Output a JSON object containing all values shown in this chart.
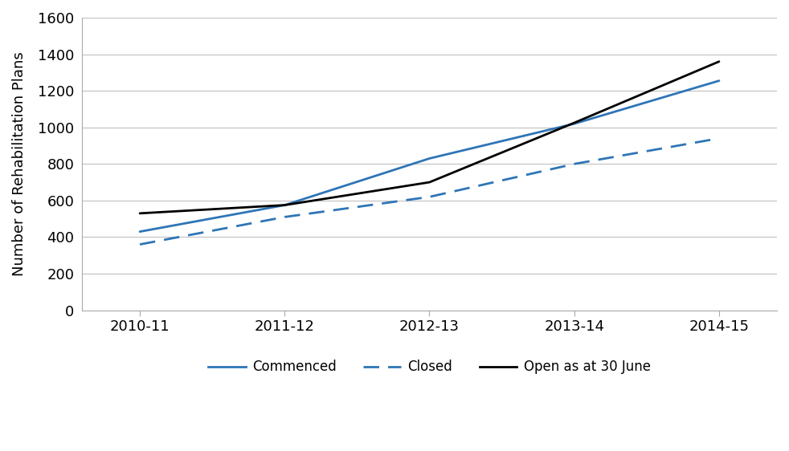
{
  "categories": [
    "2010-11",
    "2011-12",
    "2012-13",
    "2013-14",
    "2014-15"
  ],
  "commenced": [
    430,
    575,
    830,
    1020,
    1255
  ],
  "closed": [
    360,
    510,
    620,
    800,
    940
  ],
  "open_june": [
    530,
    575,
    700,
    1025,
    1360
  ],
  "ylabel": "Number of Rehabilitation Plans",
  "ylim": [
    0,
    1600
  ],
  "yticks": [
    0,
    200,
    400,
    600,
    800,
    1000,
    1200,
    1400,
    1600
  ],
  "commenced_color": "#2E75B6",
  "closed_color": "#2E75B6",
  "open_color": "#000000",
  "background_color": "#ffffff",
  "grid_color": "#c0c0c0",
  "legend_commenced": "Commenced",
  "legend_closed": "Closed",
  "legend_open": "Open as at 30 June",
  "tick_fontsize": 13,
  "ylabel_fontsize": 13,
  "legend_fontsize": 12
}
